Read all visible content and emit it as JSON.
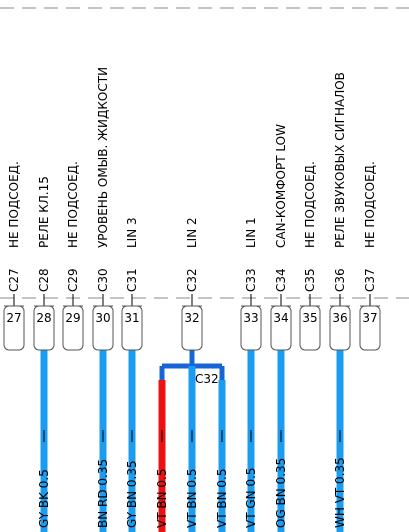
{
  "pins": [
    {
      "id": "C27",
      "label": "НЕ ПОДСОЕД.",
      "number": "27"
    },
    {
      "id": "C28",
      "label": "РЕЛЕ КЛ.15",
      "number": "28"
    },
    {
      "id": "C29",
      "label": "НЕ ПОДСОЕД.",
      "number": "29"
    },
    {
      "id": "C30",
      "label": "УРОВЕНЬ ОМЫВ. ЖИДКОСТИ",
      "number": "30"
    },
    {
      "id": "C31",
      "label": "LIN 3",
      "number": "31"
    },
    {
      "id": "C32",
      "label": "LIN 2",
      "number": "32"
    },
    {
      "id": "C33",
      "label": "LIN 1",
      "number": "33"
    },
    {
      "id": "C34",
      "label": "CAN-КОМФОРТ LOW",
      "number": "34"
    },
    {
      "id": "C35",
      "label": "НЕ ПОДСОЕД.",
      "number": "35"
    },
    {
      "id": "C36",
      "label": "РЕЛЕ ЗВУКОВЫХ СИГНАЛОВ",
      "number": "36"
    },
    {
      "id": "C37",
      "label": "НЕ ПОДСОЕД.",
      "number": "37"
    }
  ],
  "splice": {
    "label": "C32"
  },
  "wires": [
    {
      "label": "GY BK 0.5"
    },
    {
      "label": "BN RD 0.35"
    },
    {
      "label": "GY BN 0.35"
    },
    {
      "label": "VT BN 0.5"
    },
    {
      "label": "VT BN 0.5"
    },
    {
      "label": "VT BN 0.5"
    },
    {
      "label": "VT GN 0.5"
    },
    {
      "label": "OG BN 0.35"
    },
    {
      "label": "WH VT 0.35"
    }
  ]
}
